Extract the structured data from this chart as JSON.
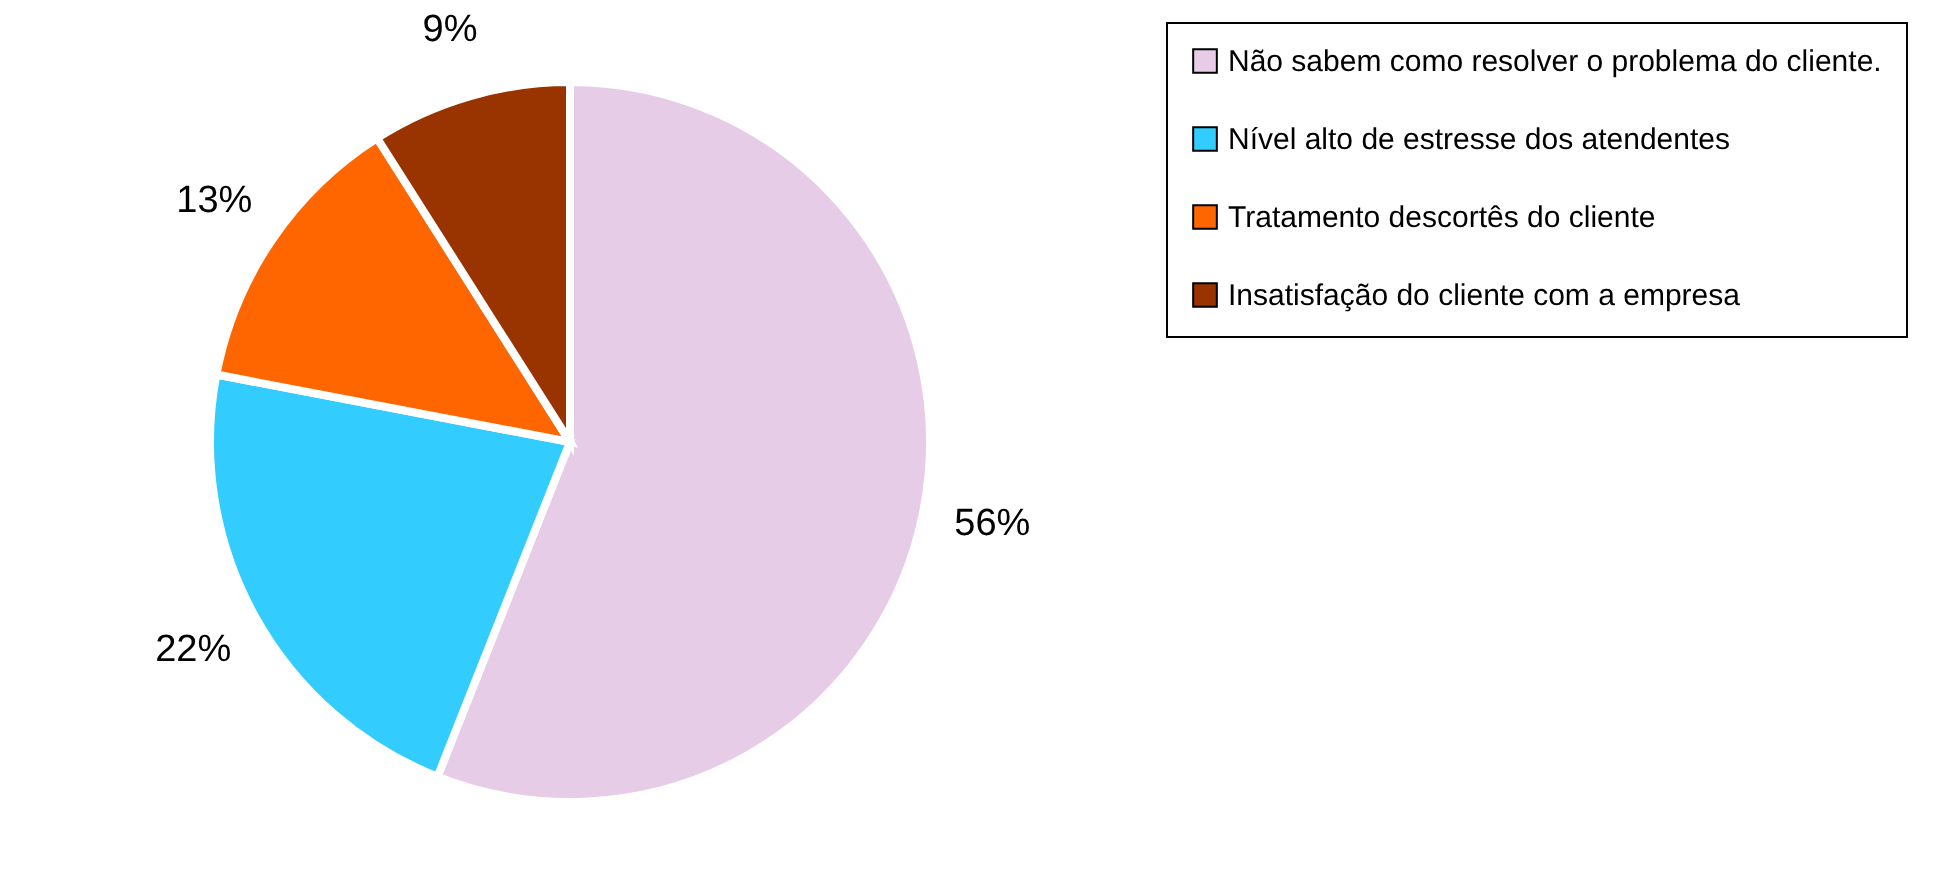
{
  "chart_data": {
    "type": "pie",
    "categories": [
      "Não sabem como resolver o problema do cliente.",
      "Nível alto de estresse dos atendentes",
      "Tratamento descortês do cliente",
      "Insatisfação do cliente com a empresa"
    ],
    "values": [
      56,
      22,
      13,
      9
    ],
    "colors": [
      "#e6cce6",
      "#33ccff",
      "#ff6600",
      "#993300"
    ],
    "value_labels": [
      "56%",
      "22%",
      "13%",
      "9%"
    ],
    "legend": "right"
  }
}
